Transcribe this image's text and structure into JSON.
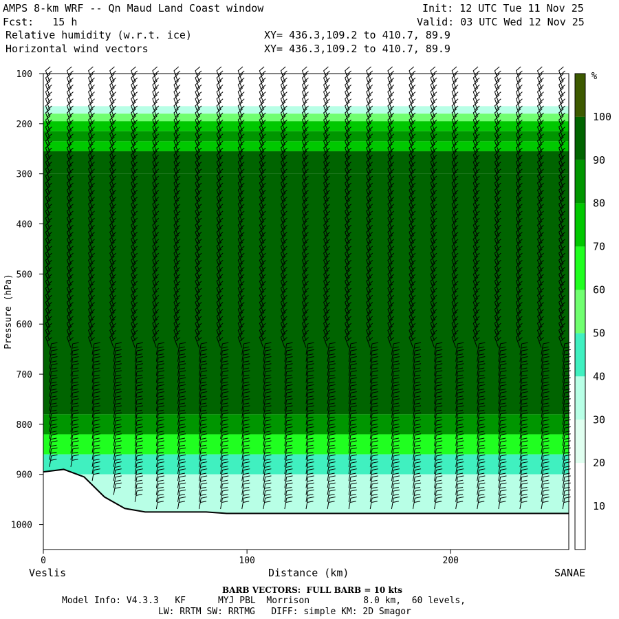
{
  "header": {
    "line1_left": "AMPS 8-km WRF -- Qn Maud Land Coast window",
    "line1_right": "Init: 12 UTC Tue 11 Nov 25",
    "line2_left": "Fcst:   15 h",
    "line2_right": "Valid: 03 UTC Wed 12 Nov 25",
    "line3_left": "Relative humidity (w.r.t. ice)",
    "line3_right": "XY= 436.3,109.2 to 410.7, 89.9",
    "line4_left": "Horizontal wind vectors",
    "line4_right": "XY= 436.3,109.2 to 410.7, 89.9"
  },
  "footer": {
    "barb_note": "BARB VECTORS:  FULL BARB = 10 kts",
    "model_info_1": "Model Info: V4.3.3   KF      MYJ PBL  Morrison          8.0 km,  60 levels,",
    "model_info_2": "LW: RRTM SW: RRTMG   DIFF: simple KM: 2D Smagor"
  },
  "chart_data": {
    "type": "heatmap",
    "title": "Relative humidity (w.r.t. ice)",
    "xlabel": "Distance (km)",
    "ylabel": "Pressure (hPa)",
    "x_start_label": "Veslis",
    "x_end_label": "SANAE",
    "xlim": [
      0,
      258
    ],
    "ylim": [
      1050,
      100
    ],
    "x_ticks": [
      0,
      100,
      200
    ],
    "y_ticks": [
      100,
      200,
      300,
      400,
      500,
      600,
      700,
      800,
      900,
      1000
    ],
    "colorbar": {
      "unit": "%",
      "levels": [
        10,
        20,
        30,
        40,
        50,
        60,
        70,
        80,
        90,
        100
      ],
      "colors": [
        "#ffffff",
        "#ffffff",
        "#ffffff",
        "#e0fff0",
        "#b8ffe6",
        "#40f0c0",
        "#70ff70",
        "#20ff20",
        "#00c800",
        "#009600",
        "#006400",
        "#3d5a00"
      ]
    },
    "rh_bands": [
      {
        "p_top": 100,
        "p_bottom": 165,
        "rh": 20
      },
      {
        "p_top": 165,
        "p_bottom": 180,
        "rh": 35
      },
      {
        "p_top": 180,
        "p_bottom": 195,
        "rh": 55
      },
      {
        "p_top": 195,
        "p_bottom": 215,
        "rh": 75
      },
      {
        "p_top": 215,
        "p_bottom": 235,
        "rh": 85
      },
      {
        "p_top": 235,
        "p_bottom": 255,
        "rh": 75
      },
      {
        "p_top": 255,
        "p_bottom": 300,
        "rh": 95
      },
      {
        "p_top": 300,
        "p_bottom": 780,
        "rh": 100
      },
      {
        "p_top": 780,
        "p_bottom": 820,
        "rh": 85
      },
      {
        "p_top": 820,
        "p_bottom": 860,
        "rh": 65
      },
      {
        "p_top": 860,
        "p_bottom": 900,
        "rh": 45
      },
      {
        "p_top": 900,
        "p_bottom": 980,
        "rh": 35
      }
    ],
    "terrain_surface": {
      "x": [
        0,
        10,
        20,
        30,
        40,
        50,
        60,
        80,
        90,
        100,
        150,
        200,
        258
      ],
      "p": [
        895,
        890,
        905,
        945,
        968,
        975,
        975,
        975,
        978,
        978,
        978,
        978,
        978
      ]
    },
    "barb_note": "FULL BARB = 10 kts"
  }
}
